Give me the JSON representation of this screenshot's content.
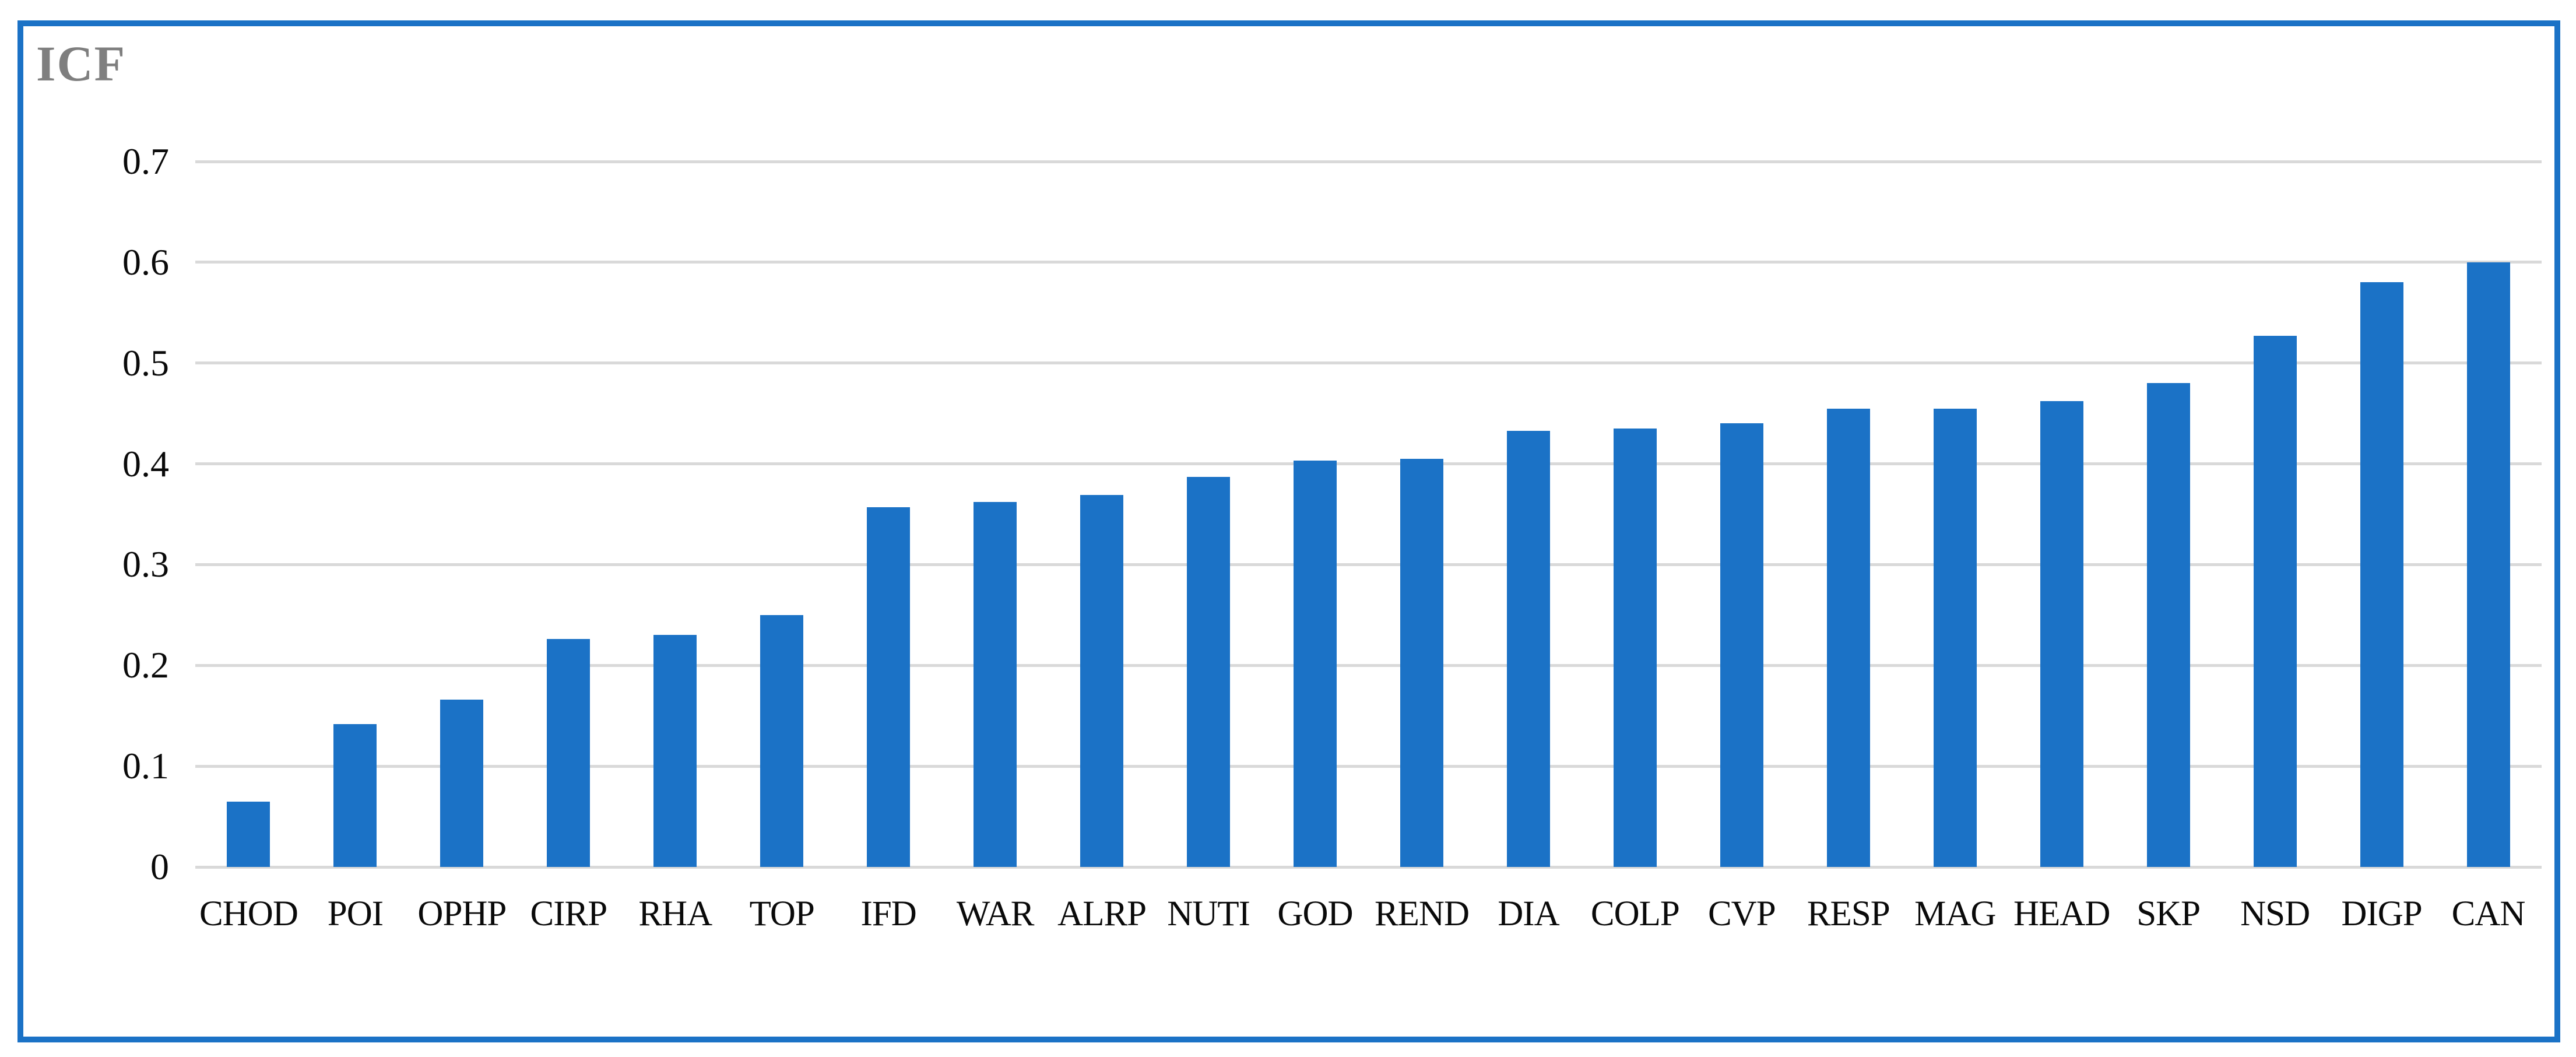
{
  "figure": {
    "title": "ICF"
  },
  "colors": {
    "bar": "#1B72C6",
    "frame_border": "#1B72C6",
    "gridline": "#D9D9D9",
    "title_text": "#7F7F7F",
    "axis_text": "#0A0A0A",
    "background": "#FFFFFF"
  },
  "chart_data": {
    "type": "bar",
    "title": "ICF",
    "categories": [
      "CHOD",
      "POI",
      "OPHP",
      "CIRP",
      "RHA",
      "TOP",
      "IFD",
      "WAR",
      "ALRP",
      "NUTI",
      "GOD",
      "REND",
      "DIA",
      "COLP",
      "CVP",
      "RESP",
      "MAG",
      "HEAD",
      "SKP",
      "NSD",
      "DIGP",
      "CAN"
    ],
    "values": [
      0.065,
      0.142,
      0.166,
      0.226,
      0.23,
      0.25,
      0.357,
      0.362,
      0.369,
      0.387,
      0.403,
      0.405,
      0.433,
      0.435,
      0.44,
      0.455,
      0.455,
      0.462,
      0.48,
      0.527,
      0.58,
      0.6
    ],
    "xlabel": "",
    "ylabel": "",
    "ylim": [
      0,
      0.7
    ],
    "yticks": [
      0,
      0.1,
      0.2,
      0.3,
      0.4,
      0.5,
      0.6,
      0.7
    ],
    "ytick_labels": [
      "0",
      "0.1",
      "0.2",
      "0.3",
      "0.4",
      "0.5",
      "0.6",
      "0.7"
    ],
    "grid": "horizontal-only",
    "legend_position": "none",
    "bar_color": "#1B72C6"
  }
}
